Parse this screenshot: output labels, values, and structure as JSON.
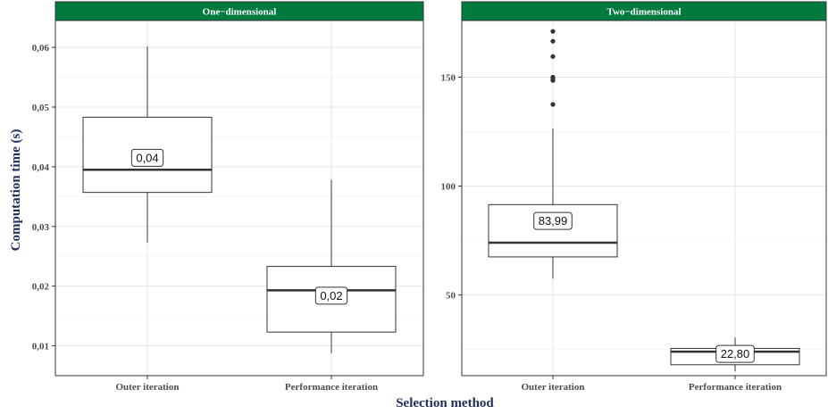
{
  "chart_data": {
    "type": "box",
    "xlabel": "Selection method",
    "ylabel": "Computation time (s)",
    "categories": [
      "Outer iteration",
      "Performance iteration"
    ],
    "colors": {
      "strip": "#007a3d",
      "axis_title": "#1f2d5c"
    },
    "panels": [
      {
        "title": "One−dimensional",
        "ylim": [
          0.005,
          0.0645
        ],
        "yticks": [
          0.01,
          0.02,
          0.03,
          0.04,
          0.05,
          0.06
        ],
        "ytick_labels": [
          "0,01",
          "0,02",
          "0,03",
          "0,04",
          "0,05",
          "0,06"
        ],
        "boxes": [
          {
            "category": "Outer iteration",
            "whisker_low": 0.0273,
            "q1": 0.0357,
            "median": 0.0395,
            "q3": 0.0483,
            "whisker_high": 0.0601,
            "outliers": [],
            "label": "0,04",
            "label_y": 0.0415
          },
          {
            "category": "Performance iteration",
            "whisker_low": 0.0088,
            "q1": 0.0123,
            "median": 0.0193,
            "q3": 0.0233,
            "whisker_high": 0.0378,
            "outliers": [],
            "label": "0,02",
            "label_y": 0.0184
          }
        ]
      },
      {
        "title": "Two−dimensional",
        "ylim": [
          13,
          176
        ],
        "yticks": [
          50,
          100,
          150
        ],
        "ytick_labels": [
          "50",
          "100",
          "150"
        ],
        "boxes": [
          {
            "category": "Outer iteration",
            "whisker_low": 57.5,
            "q1": 67.5,
            "median": 74,
            "q3": 91.5,
            "whisker_high": 126.5,
            "outliers": [
              137.5,
              148.5,
              149.5,
              150,
              159.5,
              166.5,
              171
            ],
            "label": "83,99",
            "label_y": 84
          },
          {
            "category": "Performance iteration",
            "whisker_low": 15,
            "q1": 18,
            "median": 24,
            "q3": 25.5,
            "whisker_high": 30.5,
            "outliers": [],
            "label": "22,80",
            "label_y": 23
          }
        ]
      }
    ]
  }
}
